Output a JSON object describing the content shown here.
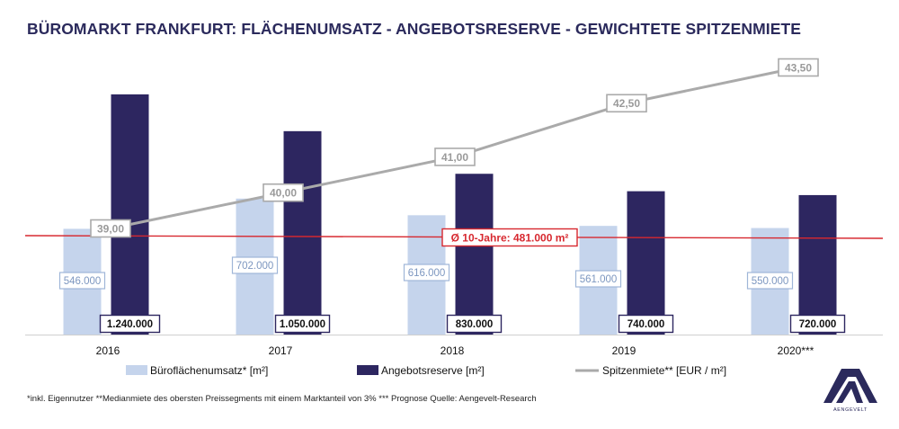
{
  "title": "BÜROMARKT FRANKFURT: FLÄCHENUMSATZ - ANGEBOTSRESERVE - GEWICHTETE SPITZENMIETE",
  "footnote": "*inkl. Eigennutzer **Medianmiete des obersten Preissegments mit einem Marktanteil von 3% *** Prognose   Quelle: Aengevelt-Research",
  "logo_text": "AENGEVELT",
  "colors": {
    "title": "#2b2a5c",
    "umsatz": "#c5d4ec",
    "reserve": "#2d2660",
    "miete": "#aaaaaa",
    "average": "#d7282f",
    "umsatz_label_text": "#7d97c0"
  },
  "chart_data": {
    "type": "bar",
    "categories": [
      "2016",
      "2017",
      "2018",
      "2019",
      "2020***"
    ],
    "series": [
      {
        "name": "Büroflächenumsatz* [m²]",
        "type": "bar",
        "values": [
          546000,
          702000,
          616000,
          561000,
          550000
        ],
        "labels": [
          "546.000",
          "702.000",
          "616.000",
          "561.000",
          "550.000"
        ]
      },
      {
        "name": "Angebotsreserve [m²]",
        "type": "bar",
        "values": [
          1240000,
          1050000,
          830000,
          740000,
          720000
        ],
        "labels": [
          "1.240.000",
          "1.050.000",
          "830.000",
          "740.000",
          "720.000"
        ]
      },
      {
        "name": "Spitzenmiete** [EUR / m²]",
        "type": "line",
        "values": [
          39.0,
          40.0,
          41.0,
          42.5,
          43.5
        ],
        "labels": [
          "39,00",
          "40,00",
          "41,00",
          "42,50",
          "43,50"
        ]
      }
    ],
    "average_line": {
      "value": 481000,
      "label": "Ø 10-Jahre: 481.000 m²"
    },
    "ylim_area": [
      0,
      1300000
    ],
    "ylim_rent": [
      33.5,
      44.5
    ],
    "legend_position": "bottom",
    "grid": false
  }
}
